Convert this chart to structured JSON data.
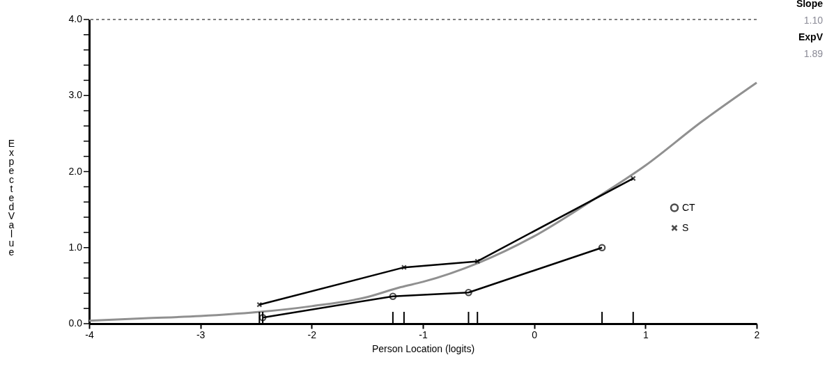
{
  "chart_data": {
    "type": "line",
    "xlabel": "Person Location (logits)",
    "ylabel": "Expected Value",
    "xlim": [
      -4,
      2
    ],
    "xticks": [
      -4,
      -3,
      -2,
      -1,
      0,
      1,
      2
    ],
    "ylim": [
      0,
      4
    ],
    "yticks": [
      {
        "value": 0,
        "label": "0.0"
      },
      {
        "value": 0.2,
        "label": null
      },
      {
        "value": 0.4,
        "label": null
      },
      {
        "value": 0.6,
        "label": null
      },
      {
        "value": 0.8,
        "label": null
      },
      {
        "value": 1,
        "label": "1.0"
      },
      {
        "value": 1.2,
        "label": null
      },
      {
        "value": 1.4,
        "label": null
      },
      {
        "value": 1.6,
        "label": null
      },
      {
        "value": 1.8,
        "label": null
      },
      {
        "value": 2,
        "label": "2.0"
      },
      {
        "value": 2.2,
        "label": null
      },
      {
        "value": 2.4,
        "label": null
      },
      {
        "value": 2.6,
        "label": null
      },
      {
        "value": 2.8,
        "label": null
      },
      {
        "value": 3,
        "label": "3.0"
      },
      {
        "value": 3.2,
        "label": null
      },
      {
        "value": 3.4,
        "label": null
      },
      {
        "value": 3.6,
        "label": null
      },
      {
        "value": 3.8,
        "label": null
      },
      {
        "value": 4,
        "label": "4.0"
      }
    ],
    "grid": false,
    "legend": "right",
    "series": [
      {
        "color": "#909090",
        "marker": "none",
        "x": [
          -4,
          -3.5,
          -3,
          -2.5,
          -2,
          -1.5,
          -1.2,
          -1,
          -0.5,
          0,
          0.5,
          1,
          1.5,
          2
        ],
        "values": [
          0.04,
          0.07,
          0.1,
          0.15,
          0.23,
          0.35,
          0.48,
          0.55,
          0.8,
          1.15,
          1.6,
          2.08,
          2.65,
          3.17
        ]
      },
      {
        "name": "CT",
        "color": "#000000",
        "marker": "circle",
        "x": [
          -2.44,
          -1.27,
          -0.59,
          0.61
        ],
        "values": [
          0.08,
          0.36,
          0.41,
          1.0
        ]
      },
      {
        "name": "S",
        "color": "#000000",
        "marker": "cross",
        "x": [
          -2.47,
          -1.17,
          -0.51,
          0.89
        ],
        "values": [
          0.25,
          0.74,
          0.82,
          1.91
        ]
      }
    ],
    "ref_lines": [
      {
        "axis": "y",
        "value": 4,
        "label": null,
        "color": "#000000",
        "line_style": "dashed"
      }
    ],
    "annotations": [
      "Slope",
      "1.10",
      "ExpV",
      "1.89"
    ]
  }
}
